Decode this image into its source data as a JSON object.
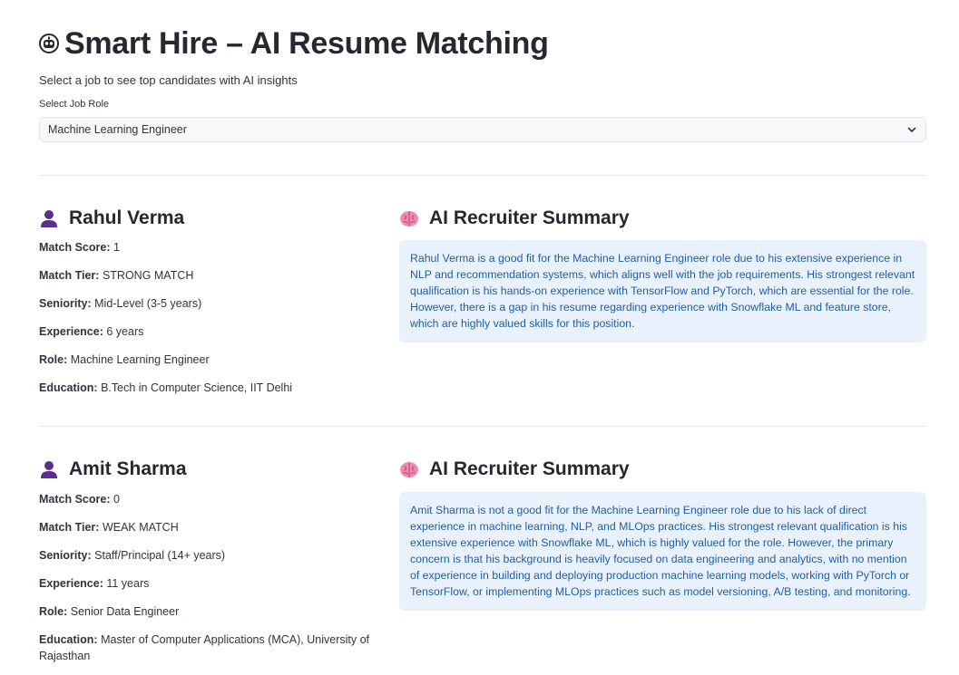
{
  "header": {
    "title": "Smart Hire – AI Resume Matching",
    "subtitle": "Select a job to see top candidates with AI insights",
    "icon": "robot-face-icon"
  },
  "job_select": {
    "label": "Select Job Role",
    "selected": "Machine Learning Engineer"
  },
  "candidates": [
    {
      "name": "Rahul Verma",
      "match_score_label": "Match Score:",
      "match_score": "1",
      "match_tier_label": "Match Tier:",
      "match_tier": "STRONG MATCH",
      "seniority_label": "Seniority:",
      "seniority": "Mid-Level (3-5 years)",
      "experience_label": "Experience:",
      "experience": "6 years",
      "role_label": "Role:",
      "role": "Machine Learning Engineer",
      "education_label": "Education:",
      "education": "B.Tech in Computer Science, IIT Delhi",
      "summary_heading": "AI Recruiter Summary",
      "summary": "Rahul Verma is a good fit for the Machine Learning Engineer role due to his extensive experience in NLP and recommendation systems, which aligns well with the job requirements. His strongest relevant qualification is his hands-on experience with TensorFlow and PyTorch, which are essential for the role. However, there is a gap in his resume regarding experience with Snowflake ML and feature store, which are highly valued skills for this position."
    },
    {
      "name": "Amit Sharma",
      "match_score_label": "Match Score:",
      "match_score": "0",
      "match_tier_label": "Match Tier:",
      "match_tier": "WEAK MATCH",
      "seniority_label": "Seniority:",
      "seniority": "Staff/Principal (14+ years)",
      "experience_label": "Experience:",
      "experience": "11 years",
      "role_label": "Role:",
      "role": "Senior Data Engineer",
      "education_label": "Education:",
      "education": "Master of Computer Applications (MCA), University of Rajasthan",
      "summary_heading": "AI Recruiter Summary",
      "summary": "Amit Sharma is not a good fit for the Machine Learning Engineer role due to his lack of direct experience in machine learning, NLP, and MLOps practices. His strongest relevant qualification is his extensive experience with Snowflake ML, which is highly valued for the role. However, the primary concern is that his background is heavily focused on data engineering and analytics, with no mention of experience in building and deploying production machine learning models, working with PyTorch or TensorFlow, or implementing MLOps practices such as model versioning, A/B testing, and monitoring."
    }
  ],
  "colors": {
    "summary_bg": "#e9f1fd",
    "summary_text": "#1f5fa6",
    "person_icon": "#5b2d8e",
    "brain_icon": "#f08bb4"
  }
}
